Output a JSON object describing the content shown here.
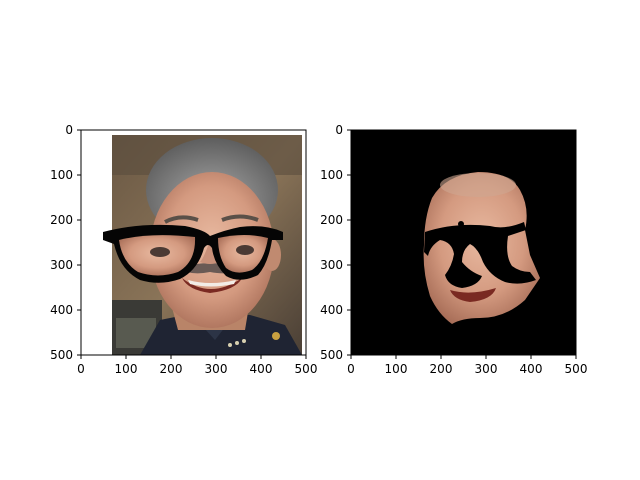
{
  "figure": {
    "panels": [
      {
        "name": "original-with-glasses",
        "content": "photo of a smiling man with gray hair wearing a dark uniform, with cartoon black eyeglasses overlaid on his eyes",
        "xticks": [
          "0",
          "100",
          "200",
          "300",
          "400",
          "500"
        ],
        "yticks": [
          "0",
          "100",
          "200",
          "300",
          "400",
          "500"
        ],
        "xlim": [
          0,
          500
        ],
        "ylim": [
          500,
          0
        ]
      },
      {
        "name": "segmented-face",
        "content": "segmented face region on a black background, with black holes where the glasses and mouth were removed",
        "xticks": [
          "0",
          "100",
          "200",
          "300",
          "400",
          "500"
        ],
        "yticks": [
          "0",
          "100",
          "200",
          "300",
          "400",
          "500"
        ],
        "xlim": [
          0,
          500
        ],
        "ylim": [
          500,
          0
        ]
      }
    ]
  }
}
